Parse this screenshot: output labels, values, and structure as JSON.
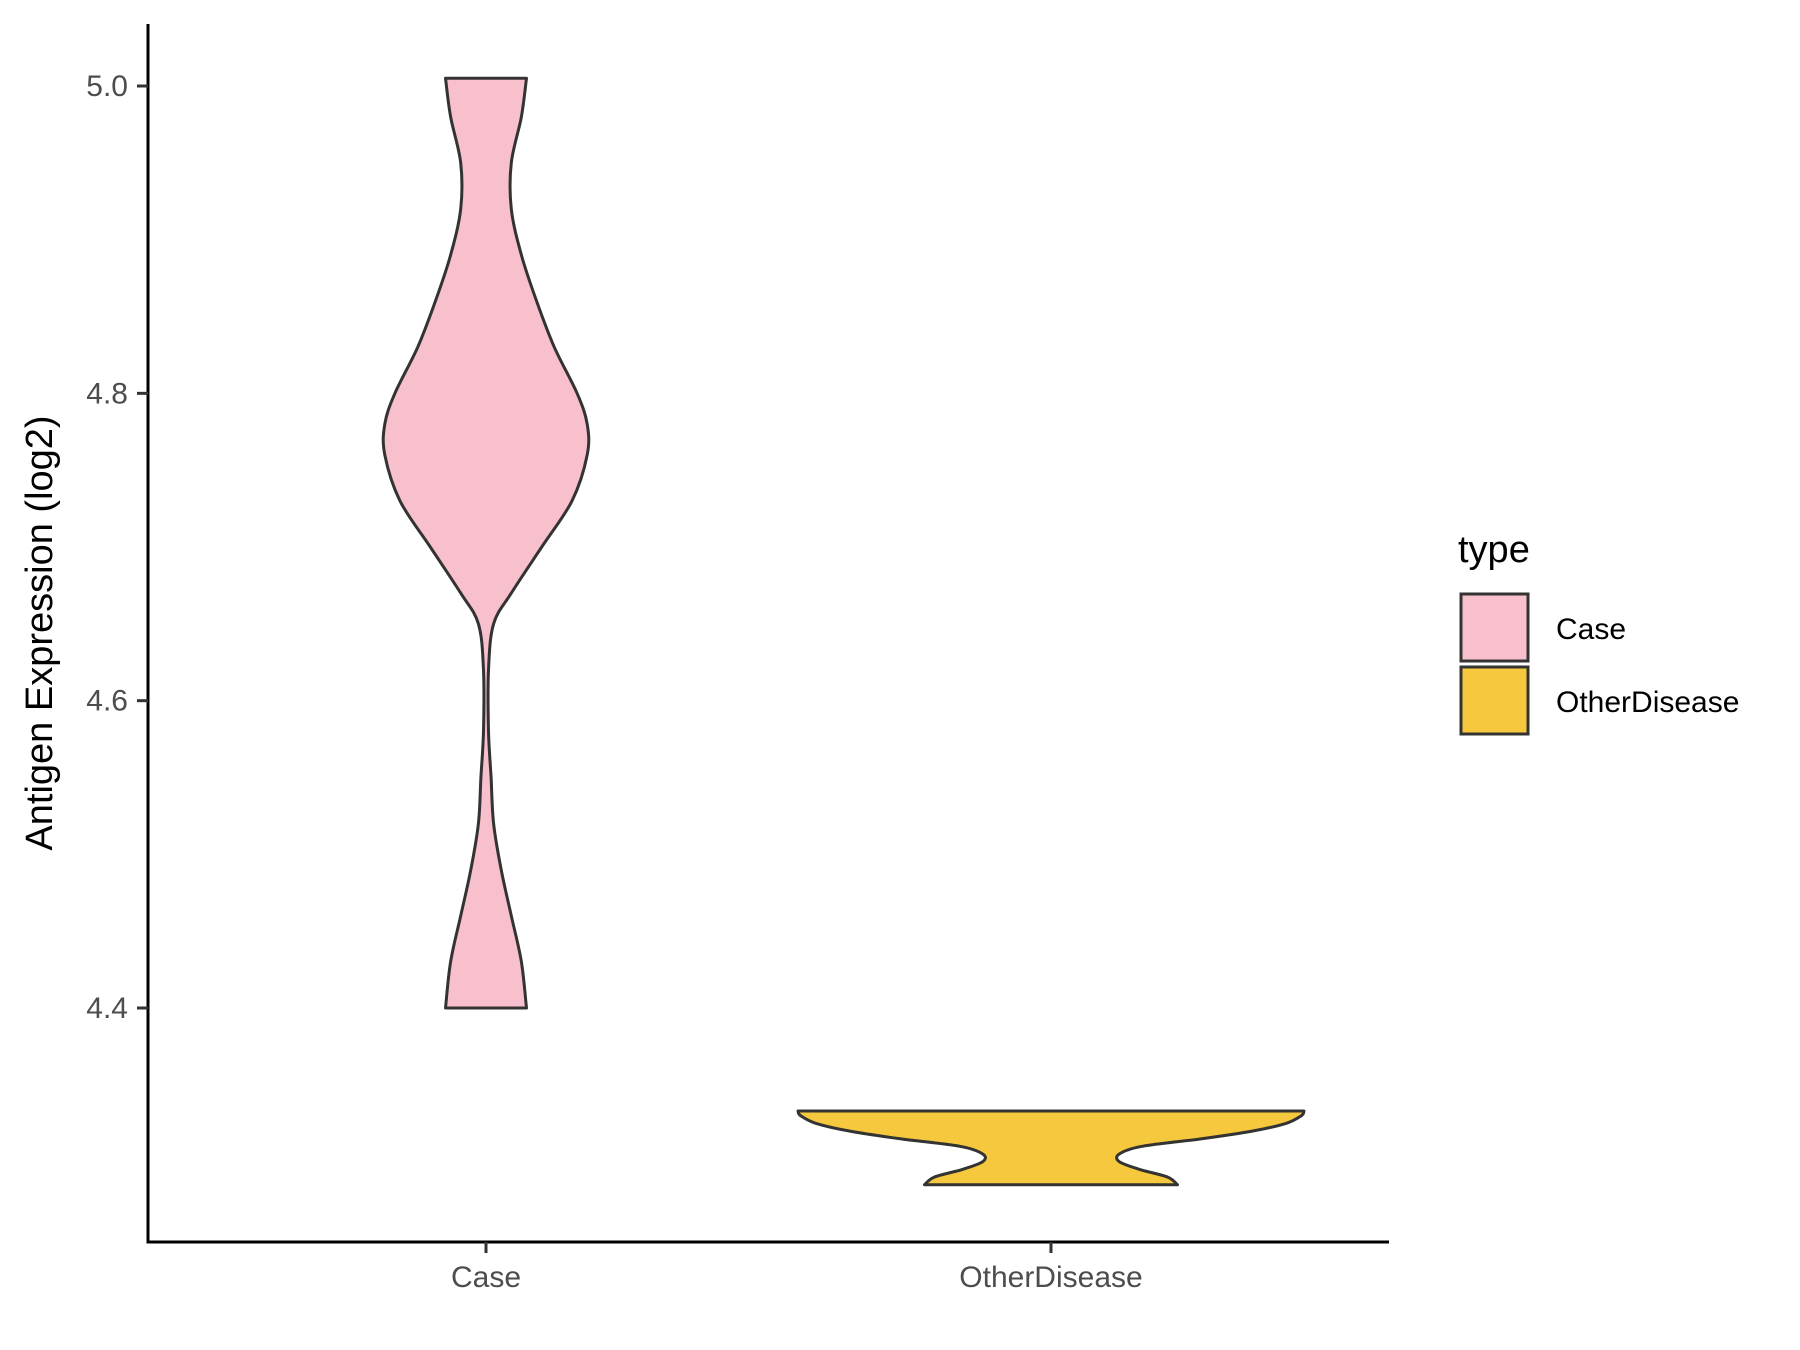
{
  "chart_data": {
    "type": "violin",
    "ylabel": "Antigen Expression (log2)",
    "xlabel": "",
    "categories": [
      "Case",
      "OtherDisease"
    ],
    "ylim": [
      4.25,
      5.04
    ],
    "yticks": [
      4.4,
      4.6,
      4.8,
      5.0
    ],
    "ytick_labels": [
      "4.4",
      "4.6",
      "4.8",
      "5.0"
    ],
    "legend": {
      "title": "type",
      "placement": "right",
      "entries": [
        {
          "label": "Case",
          "color": "#F7C0CC"
        },
        {
          "label": "OtherDisease",
          "color": "#F5C83E"
        }
      ]
    },
    "series": [
      {
        "category": "Case",
        "color": "#F7C0CC",
        "min": 4.4,
        "max": 5.005,
        "density": [
          [
            4.4,
            0.16
          ],
          [
            4.43,
            0.14
          ],
          [
            4.46,
            0.1
          ],
          [
            4.49,
            0.06
          ],
          [
            4.52,
            0.03
          ],
          [
            4.55,
            0.02
          ],
          [
            4.58,
            0.01
          ],
          [
            4.62,
            0.01
          ],
          [
            4.65,
            0.03
          ],
          [
            4.67,
            0.1
          ],
          [
            4.7,
            0.22
          ],
          [
            4.73,
            0.34
          ],
          [
            4.76,
            0.4
          ],
          [
            4.78,
            0.4
          ],
          [
            4.8,
            0.36
          ],
          [
            4.83,
            0.27
          ],
          [
            4.86,
            0.2
          ],
          [
            4.89,
            0.14
          ],
          [
            4.92,
            0.1
          ],
          [
            4.95,
            0.1
          ],
          [
            4.98,
            0.14
          ],
          [
            5.005,
            0.16
          ]
        ]
      },
      {
        "category": "OtherDisease",
        "color": "#F5C83E",
        "min": 4.285,
        "max": 4.333,
        "density": [
          [
            4.285,
            0.5
          ],
          [
            4.29,
            0.46
          ],
          [
            4.295,
            0.35
          ],
          [
            4.3,
            0.27
          ],
          [
            4.305,
            0.27
          ],
          [
            4.31,
            0.36
          ],
          [
            4.315,
            0.6
          ],
          [
            4.32,
            0.8
          ],
          [
            4.325,
            0.93
          ],
          [
            4.33,
            0.99
          ],
          [
            4.333,
            1.0
          ]
        ]
      }
    ]
  }
}
